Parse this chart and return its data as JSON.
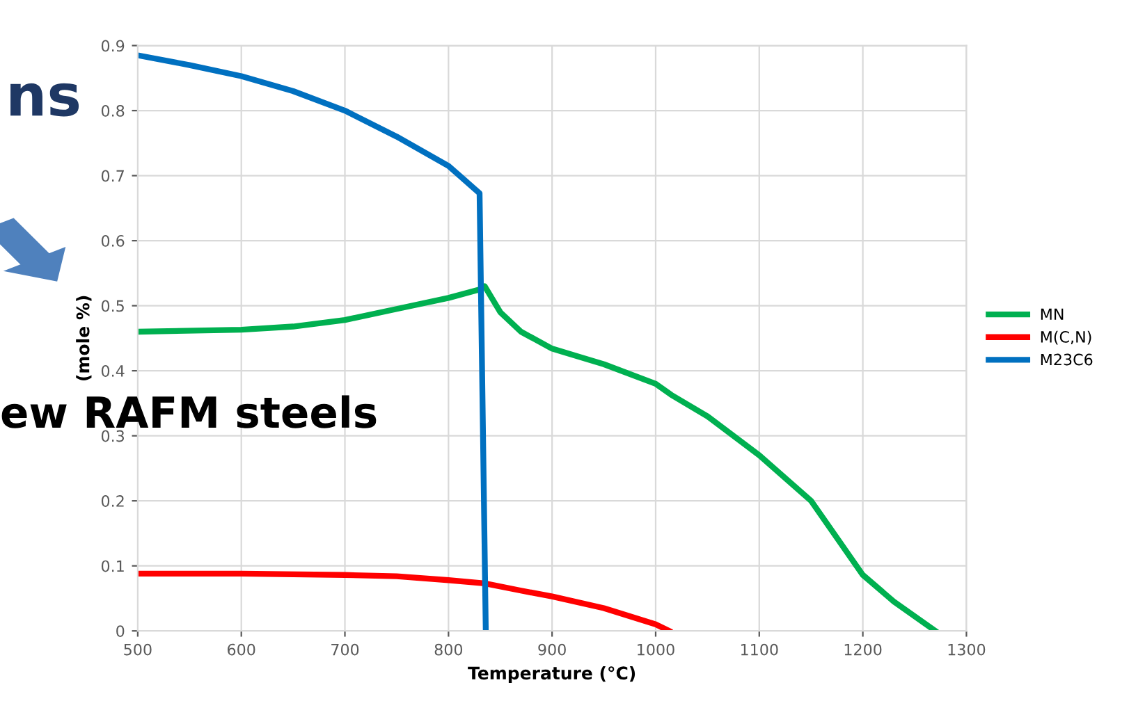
{
  "chart_data": {
    "type": "line",
    "xlabel": "Temperature (°C)",
    "ylabel": "(mole %)",
    "xlim": [
      500,
      1300
    ],
    "xticks": [
      500,
      600,
      700,
      800,
      900,
      1000,
      1100,
      1200,
      1300
    ],
    "ylim": [
      0,
      0.9
    ],
    "yticks": [
      0,
      0.1,
      0.2,
      0.3,
      0.4,
      0.5,
      0.6,
      0.7,
      0.8,
      0.9
    ],
    "grid": true,
    "legend": "right",
    "line_style": "solid",
    "marker": "none",
    "annotations": [
      "ns",
      "ew RAFM steels"
    ],
    "series": [
      {
        "name": "MN",
        "color": "#00b050",
        "x": [
          500,
          600,
          650,
          700,
          750,
          800,
          830,
          835,
          850,
          870,
          900,
          950,
          1000,
          1015,
          1050,
          1100,
          1150,
          1200,
          1230,
          1270
        ],
        "values": [
          0.46,
          0.463,
          0.468,
          0.478,
          0.495,
          0.512,
          0.525,
          0.53,
          0.49,
          0.46,
          0.434,
          0.41,
          0.38,
          0.363,
          0.33,
          0.27,
          0.2,
          0.086,
          0.045,
          0
        ]
      },
      {
        "name": "M(C,N)",
        "color": "#ff0000",
        "x": [
          500,
          600,
          700,
          750,
          800,
          835,
          870,
          900,
          950,
          1000,
          1013
        ],
        "values": [
          0.088,
          0.088,
          0.086,
          0.084,
          0.078,
          0.073,
          0.062,
          0.053,
          0.035,
          0.01,
          0
        ]
      },
      {
        "name": "M23C6",
        "color": "#0070c0",
        "x": [
          500,
          550,
          600,
          650,
          700,
          750,
          800,
          825,
          830,
          836
        ],
        "values": [
          0.885,
          0.87,
          0.853,
          0.83,
          0.8,
          0.76,
          0.715,
          0.68,
          0.673,
          0
        ]
      }
    ]
  }
}
